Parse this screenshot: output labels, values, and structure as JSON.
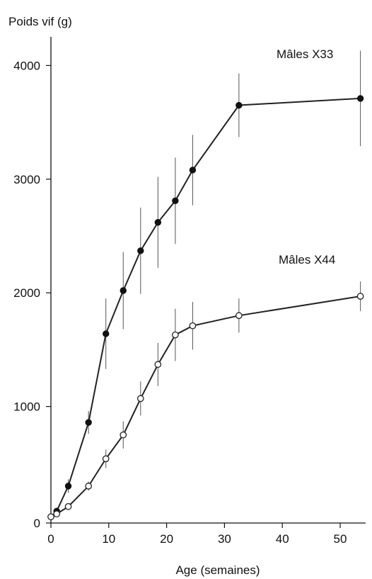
{
  "chart_data": {
    "type": "line",
    "ylabel": "Poids vif (g)",
    "xlabel": "Age (semaines)",
    "xlim": [
      0,
      54
    ],
    "ylim": [
      0,
      4200
    ],
    "x_ticks": [
      0,
      10,
      20,
      30,
      40,
      50
    ],
    "y_ticks": [
      0,
      1000,
      2000,
      3000,
      4000
    ],
    "series": [
      {
        "name": "Mâles X33",
        "marker": "filled",
        "points": [
          {
            "x": 0,
            "y": 30,
            "err": 0
          },
          {
            "x": 1,
            "y": 80,
            "err": 30
          },
          {
            "x": 3,
            "y": 300,
            "err": 60
          },
          {
            "x": 6.5,
            "y": 860,
            "err": 100
          },
          {
            "x": 9.5,
            "y": 1640,
            "err": 310
          },
          {
            "x": 12.5,
            "y": 2020,
            "err": 340
          },
          {
            "x": 15.5,
            "y": 2370,
            "err": 380
          },
          {
            "x": 18.5,
            "y": 2620,
            "err": 400
          },
          {
            "x": 21.5,
            "y": 2810,
            "err": 380
          },
          {
            "x": 24.5,
            "y": 3080,
            "err": 310
          },
          {
            "x": 32.5,
            "y": 3650,
            "err": 280
          },
          {
            "x": 53.5,
            "y": 3710,
            "err": 420
          }
        ]
      },
      {
        "name": "Mâles X44",
        "marker": "open",
        "points": [
          {
            "x": 0,
            "y": 30,
            "err": 0
          },
          {
            "x": 1,
            "y": 55,
            "err": 0
          },
          {
            "x": 3,
            "y": 120,
            "err": 20
          },
          {
            "x": 6.5,
            "y": 300,
            "err": 40
          },
          {
            "x": 9.5,
            "y": 540,
            "err": 80
          },
          {
            "x": 12.5,
            "y": 750,
            "err": 120
          },
          {
            "x": 15.5,
            "y": 1070,
            "err": 150
          },
          {
            "x": 18.5,
            "y": 1370,
            "err": 190
          },
          {
            "x": 21.5,
            "y": 1630,
            "err": 230
          },
          {
            "x": 24.5,
            "y": 1710,
            "err": 210
          },
          {
            "x": 32.5,
            "y": 1800,
            "err": 150
          },
          {
            "x": 53.5,
            "y": 1970,
            "err": 130
          }
        ]
      }
    ]
  }
}
